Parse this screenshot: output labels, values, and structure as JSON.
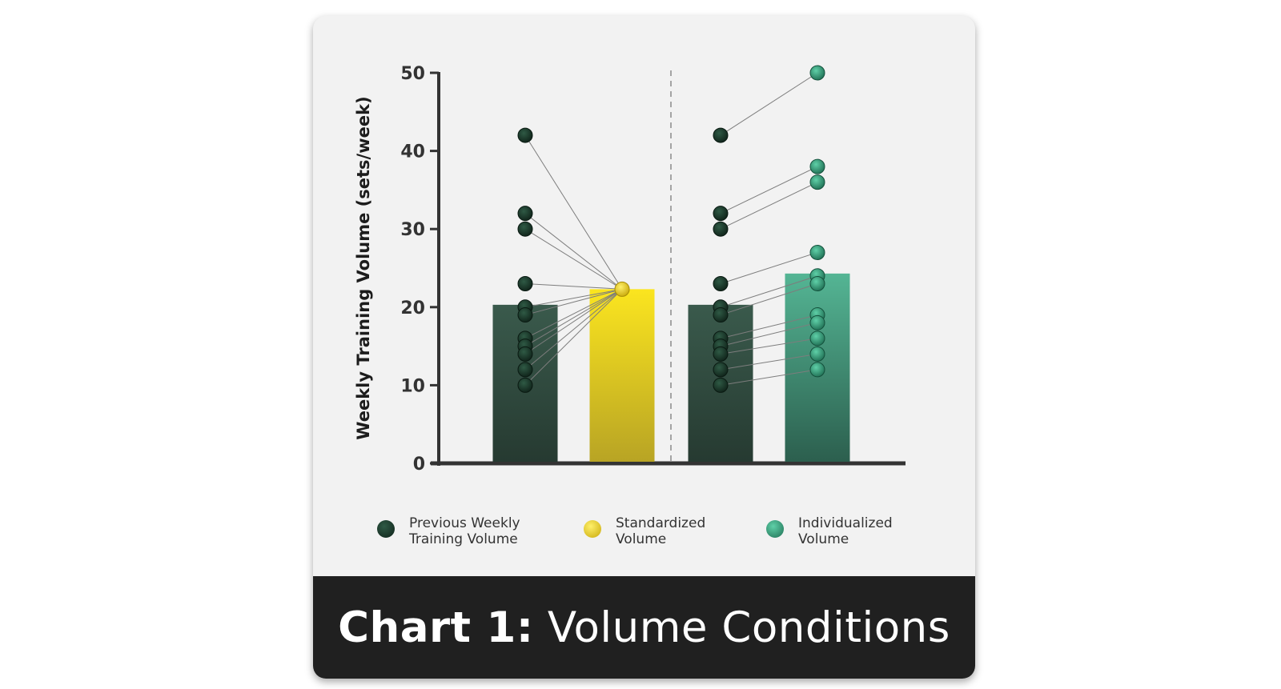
{
  "colors": {
    "previous": "#1c3a2c",
    "standardized": "#f5dc1c",
    "individualized": "#2e8a6c",
    "previous_bar": "#2f4a40",
    "standardized_bar": "#f1d91e",
    "individualized_bar": "#4aa98a",
    "axis": "#333333"
  },
  "chart_data": {
    "type": "bar",
    "ylabel": "Weekly Training Volume (sets/week)",
    "ylim": [
      0,
      50
    ],
    "yticks": [
      0,
      10,
      20,
      30,
      40,
      50
    ],
    "grid": false,
    "legend_position": "bottom",
    "groups": [
      {
        "bars": [
          {
            "series": "Previous Weekly Training Volume",
            "value": 20.3
          },
          {
            "series": "Standardized Volume",
            "value": 22.3
          }
        ],
        "points_previous": [
          42,
          32,
          30,
          23,
          20,
          19,
          16,
          15,
          14,
          12,
          10
        ],
        "points_after": [
          22.3,
          22.3,
          22.3,
          22.3,
          22.3,
          22.3,
          22.3,
          22.3,
          22.3,
          22.3,
          22.3
        ]
      },
      {
        "bars": [
          {
            "series": "Previous Weekly Training Volume",
            "value": 20.3
          },
          {
            "series": "Individualized Volume",
            "value": 24.3
          }
        ],
        "points_previous": [
          42,
          32,
          30,
          23,
          20,
          19,
          16,
          15,
          14,
          12,
          10
        ],
        "points_after": [
          50,
          38,
          36,
          27,
          24,
          23,
          19,
          18,
          16,
          14,
          12
        ]
      }
    ],
    "series": [
      {
        "name": "Previous Weekly Training Volume",
        "values": [
          20.3,
          20.3
        ]
      },
      {
        "name": "Standardized Volume",
        "values": [
          22.3
        ]
      },
      {
        "name": "Individualized Volume",
        "values": [
          24.3
        ]
      }
    ]
  },
  "legend": {
    "previous": "Previous Weekly\nTraining Volume",
    "standardized": "Standardized\nVolume",
    "individualized": "Individualized\nVolume"
  },
  "footer": {
    "title_bold": "Chart 1:",
    "title_rest": " Volume Conditions"
  }
}
